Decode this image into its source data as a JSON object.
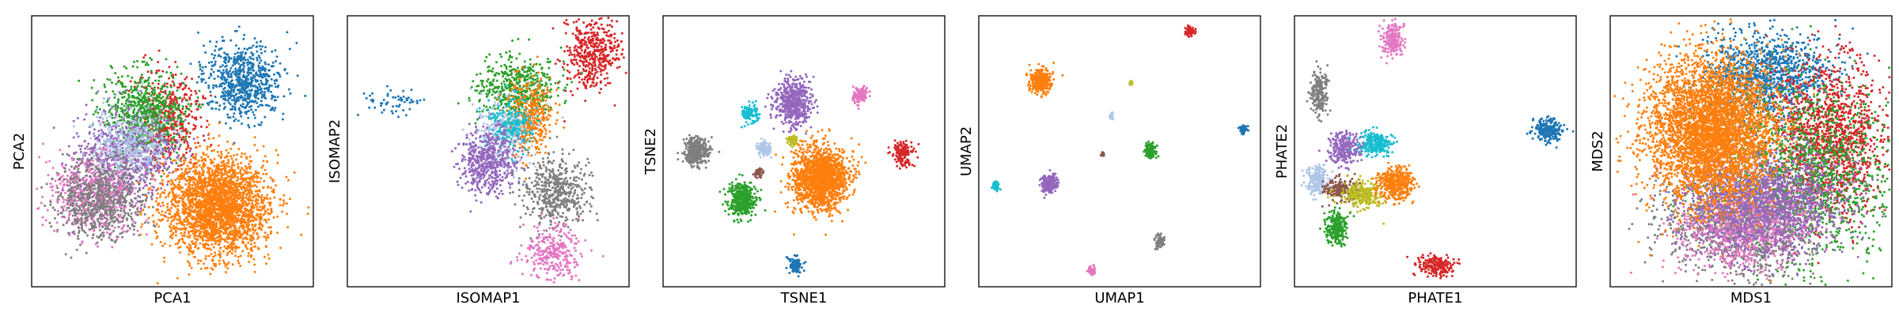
{
  "chart_data": [
    {
      "type": "scatter",
      "xlabel": "PCA1",
      "ylabel": "PCA2",
      "clusters": [
        {
          "color": "#1f77b4",
          "center": [
            0.75,
            0.24
          ],
          "spread": [
            0.07,
            0.07
          ],
          "n": 700
        },
        {
          "color": "#d62728",
          "center": [
            0.48,
            0.38
          ],
          "spread": [
            0.06,
            0.08
          ],
          "n": 450
        },
        {
          "color": "#2ca02c",
          "center": [
            0.4,
            0.36
          ],
          "spread": [
            0.07,
            0.08
          ],
          "n": 700
        },
        {
          "color": "#9467bd",
          "center": [
            0.33,
            0.52
          ],
          "spread": [
            0.09,
            0.08
          ],
          "n": 700
        },
        {
          "color": "#aec7e8",
          "center": [
            0.35,
            0.47
          ],
          "spread": [
            0.07,
            0.07
          ],
          "n": 400
        },
        {
          "color": "#e377c2",
          "center": [
            0.22,
            0.66
          ],
          "spread": [
            0.08,
            0.07
          ],
          "n": 600
        },
        {
          "color": "#7f7f7f",
          "center": [
            0.24,
            0.68
          ],
          "spread": [
            0.08,
            0.07
          ],
          "n": 700
        },
        {
          "color": "#ff7f0e",
          "center": [
            0.66,
            0.7
          ],
          "spread": [
            0.09,
            0.09
          ],
          "n": 2600
        }
      ]
    },
    {
      "type": "scatter",
      "xlabel": "ISOMAP1",
      "ylabel": "ISOMAP2",
      "clusters": [
        {
          "color": "#1f77b4",
          "center": [
            0.16,
            0.32
          ],
          "spread": [
            0.05,
            0.025
          ],
          "n": 60
        },
        {
          "color": "#d62728",
          "center": [
            0.87,
            0.14
          ],
          "spread": [
            0.05,
            0.07
          ],
          "n": 450
        },
        {
          "color": "#2ca02c",
          "center": [
            0.6,
            0.27
          ],
          "spread": [
            0.07,
            0.06
          ],
          "n": 500
        },
        {
          "color": "#ff7f0e",
          "center": [
            0.65,
            0.37
          ],
          "spread": [
            0.04,
            0.07
          ],
          "n": 400
        },
        {
          "color": "#aec7e8",
          "center": [
            0.55,
            0.43
          ],
          "spread": [
            0.05,
            0.06
          ],
          "n": 300
        },
        {
          "color": "#17becf",
          "center": [
            0.58,
            0.4
          ],
          "spread": [
            0.04,
            0.05
          ],
          "n": 200
        },
        {
          "color": "#9467bd",
          "center": [
            0.5,
            0.54
          ],
          "spread": [
            0.05,
            0.06
          ],
          "n": 500
        },
        {
          "color": "#7f7f7f",
          "center": [
            0.74,
            0.65
          ],
          "spread": [
            0.06,
            0.06
          ],
          "n": 500
        },
        {
          "color": "#e377c2",
          "center": [
            0.73,
            0.87
          ],
          "spread": [
            0.05,
            0.05
          ],
          "n": 300
        }
      ]
    },
    {
      "type": "scatter",
      "xlabel": "TSNE1",
      "ylabel": "TSNE2",
      "clusters": [
        {
          "color": "#7f7f7f",
          "center": [
            0.12,
            0.5
          ],
          "spread": [
            0.022,
            0.025
          ],
          "n": 350
        },
        {
          "color": "#2ca02c",
          "center": [
            0.28,
            0.68
          ],
          "spread": [
            0.025,
            0.032
          ],
          "n": 400
        },
        {
          "color": "#17becf",
          "center": [
            0.31,
            0.36
          ],
          "spread": [
            0.013,
            0.016
          ],
          "n": 120
        },
        {
          "color": "#9467bd",
          "center": [
            0.46,
            0.32
          ],
          "spread": [
            0.032,
            0.042
          ],
          "n": 550
        },
        {
          "color": "#aec7e8",
          "center": [
            0.36,
            0.49
          ],
          "spread": [
            0.012,
            0.014
          ],
          "n": 100
        },
        {
          "color": "#bcbd22",
          "center": [
            0.46,
            0.46
          ],
          "spread": [
            0.008,
            0.01
          ],
          "n": 60
        },
        {
          "color": "#8c564b",
          "center": [
            0.34,
            0.58
          ],
          "spread": [
            0.008,
            0.008
          ],
          "n": 50
        },
        {
          "color": "#ff7f0e",
          "center": [
            0.56,
            0.6
          ],
          "spread": [
            0.048,
            0.058
          ],
          "n": 1600
        },
        {
          "color": "#e377c2",
          "center": [
            0.7,
            0.29
          ],
          "spread": [
            0.015,
            0.016
          ],
          "n": 120
        },
        {
          "color": "#d62728",
          "center": [
            0.85,
            0.51
          ],
          "spread": [
            0.018,
            0.021
          ],
          "n": 150
        },
        {
          "color": "#1f77b4",
          "center": [
            0.47,
            0.92
          ],
          "spread": [
            0.013,
            0.015
          ],
          "n": 100
        }
      ]
    },
    {
      "type": "scatter",
      "xlabel": "UMAP1",
      "ylabel": "UMAP2",
      "clusters": [
        {
          "color": "#ff7f0e",
          "center": [
            0.22,
            0.24
          ],
          "spread": [
            0.018,
            0.022
          ],
          "n": 350
        },
        {
          "color": "#d62728",
          "center": [
            0.75,
            0.055
          ],
          "spread": [
            0.008,
            0.009
          ],
          "n": 60
        },
        {
          "color": "#bcbd22",
          "center": [
            0.54,
            0.25
          ],
          "spread": [
            0.003,
            0.004
          ],
          "n": 15
        },
        {
          "color": "#aec7e8",
          "center": [
            0.47,
            0.37
          ],
          "spread": [
            0.005,
            0.006
          ],
          "n": 25
        },
        {
          "color": "#1f77b4",
          "center": [
            0.94,
            0.42
          ],
          "spread": [
            0.007,
            0.009
          ],
          "n": 50
        },
        {
          "color": "#8c564b",
          "center": [
            0.44,
            0.51
          ],
          "spread": [
            0.003,
            0.004
          ],
          "n": 15
        },
        {
          "color": "#2ca02c",
          "center": [
            0.61,
            0.5
          ],
          "spread": [
            0.011,
            0.013
          ],
          "n": 110
        },
        {
          "color": "#9467bd",
          "center": [
            0.25,
            0.62
          ],
          "spread": [
            0.014,
            0.017
          ],
          "n": 220
        },
        {
          "color": "#17becf",
          "center": [
            0.06,
            0.63
          ],
          "spread": [
            0.007,
            0.008
          ],
          "n": 60
        },
        {
          "color": "#7f7f7f",
          "center": [
            0.64,
            0.83
          ],
          "spread": [
            0.009,
            0.011
          ],
          "n": 80
        },
        {
          "color": "#e377c2",
          "center": [
            0.4,
            0.94
          ],
          "spread": [
            0.007,
            0.008
          ],
          "n": 50
        }
      ]
    },
    {
      "type": "scatter",
      "xlabel": "PHATE1",
      "ylabel": "PHATE2",
      "clusters": [
        {
          "color": "#e377c2",
          "center": [
            0.35,
            0.09
          ],
          "spread": [
            0.02,
            0.03
          ],
          "n": 200
        },
        {
          "color": "#7f7f7f",
          "center": [
            0.09,
            0.28
          ],
          "spread": [
            0.015,
            0.04
          ],
          "n": 200
        },
        {
          "color": "#1f77b4",
          "center": [
            0.9,
            0.42
          ],
          "spread": [
            0.025,
            0.02
          ],
          "n": 250
        },
        {
          "color": "#9467bd",
          "center": [
            0.18,
            0.49
          ],
          "spread": [
            0.03,
            0.03
          ],
          "n": 250
        },
        {
          "color": "#17becf",
          "center": [
            0.29,
            0.47
          ],
          "spread": [
            0.03,
            0.02
          ],
          "n": 250
        },
        {
          "color": "#aec7e8",
          "center": [
            0.08,
            0.61
          ],
          "spread": [
            0.02,
            0.03
          ],
          "n": 200
        },
        {
          "color": "#8c564b",
          "center": [
            0.17,
            0.64
          ],
          "spread": [
            0.03,
            0.02
          ],
          "n": 200
        },
        {
          "color": "#bcbd22",
          "center": [
            0.24,
            0.66
          ],
          "spread": [
            0.04,
            0.025
          ],
          "n": 250
        },
        {
          "color": "#ff7f0e",
          "center": [
            0.36,
            0.62
          ],
          "spread": [
            0.03,
            0.03
          ],
          "n": 400
        },
        {
          "color": "#2ca02c",
          "center": [
            0.15,
            0.78
          ],
          "spread": [
            0.02,
            0.03
          ],
          "n": 250
        },
        {
          "color": "#d62728",
          "center": [
            0.5,
            0.92
          ],
          "spread": [
            0.03,
            0.02
          ],
          "n": 200
        }
      ]
    },
    {
      "type": "scatter",
      "xlabel": "MDS1",
      "ylabel": "MDS2",
      "clusters": [
        {
          "color": "#1f77b4",
          "center": [
            0.55,
            0.22
          ],
          "spread": [
            0.11,
            0.08
          ],
          "n": 1100
        },
        {
          "color": "#d62728",
          "center": [
            0.78,
            0.45
          ],
          "spread": [
            0.1,
            0.14
          ],
          "n": 1400
        },
        {
          "color": "#2ca02c",
          "center": [
            0.7,
            0.58
          ],
          "spread": [
            0.16,
            0.16
          ],
          "n": 1400
        },
        {
          "color": "#7f7f7f",
          "center": [
            0.46,
            0.75
          ],
          "spread": [
            0.13,
            0.1
          ],
          "n": 1300
        },
        {
          "color": "#e377c2",
          "center": [
            0.48,
            0.78
          ],
          "spread": [
            0.12,
            0.08
          ],
          "n": 900
        },
        {
          "color": "#9467bd",
          "center": [
            0.55,
            0.68
          ],
          "spread": [
            0.14,
            0.1
          ],
          "n": 1400
        },
        {
          "color": "#ff7f0e",
          "center": [
            0.36,
            0.42
          ],
          "spread": [
            0.11,
            0.13
          ],
          "n": 4200
        }
      ]
    }
  ]
}
